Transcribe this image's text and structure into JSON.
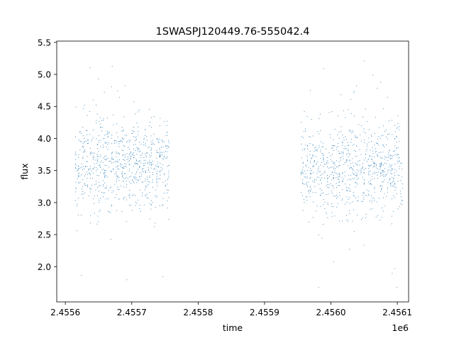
{
  "chart_data": {
    "type": "scatter",
    "title": "1SWASPJ120449.76-555042.4",
    "xlabel": "time",
    "ylabel": "flux",
    "x_offset_label": "1e6",
    "x_ticks": [
      2.4556,
      2.4557,
      2.4558,
      2.4559,
      2.456,
      2.4561
    ],
    "x_tick_labels": [
      "2.4556",
      "2.4557",
      "2.4558",
      "2.4559",
      "2.4560",
      "2.4561"
    ],
    "y_ticks": [
      2.0,
      2.5,
      3.0,
      3.5,
      4.0,
      4.5,
      5.0,
      5.5
    ],
    "y_tick_labels": [
      "2.0",
      "2.5",
      "3.0",
      "3.5",
      "4.0",
      "4.5",
      "5.0",
      "5.5"
    ],
    "xlim": [
      2455587,
      2456117
    ],
    "ylim": [
      1.45,
      5.52
    ],
    "grid": false,
    "marker_color": "#1f77b4",
    "series": [
      {
        "segments": [
          {
            "x_start": 2455615,
            "x_end": 2455755,
            "y_center": 3.6,
            "y_spread": 0.35,
            "y_min": 1.8,
            "y_max": 5.13
          },
          {
            "x_start": 2455955,
            "x_end": 2456107,
            "y_center": 3.55,
            "y_spread": 0.35,
            "y_min": 1.68,
            "y_max": 5.35
          }
        ]
      }
    ]
  }
}
